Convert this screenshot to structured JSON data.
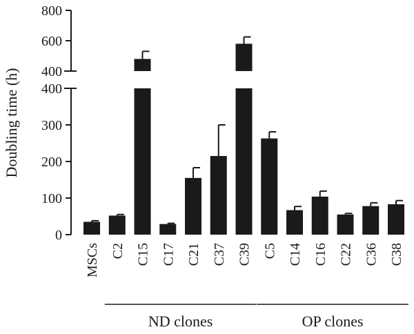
{
  "chart_data": {
    "type": "bar",
    "ylabel": "Doubling time (h)",
    "axis_break": {
      "lower_range": [
        0,
        400
      ],
      "upper_range": [
        400,
        800
      ]
    },
    "lower_ticks": [
      0,
      100,
      200,
      300,
      400
    ],
    "upper_ticks": [
      400,
      600,
      800
    ],
    "categories": [
      "MSCs",
      "C2",
      "C15",
      "C17",
      "C21",
      "C37",
      "C39",
      "C5",
      "C14",
      "C16",
      "C22",
      "C36",
      "C38"
    ],
    "values": [
      35,
      52,
      480,
      29,
      155,
      215,
      580,
      263,
      67,
      104,
      55,
      78,
      83
    ],
    "errors": [
      3,
      3,
      50,
      2,
      28,
      85,
      45,
      18,
      10,
      15,
      3,
      9,
      10
    ],
    "groups": [
      {
        "label": "ND clones",
        "categories": [
          "C2",
          "C15",
          "C17",
          "C21",
          "C37",
          "C39"
        ]
      },
      {
        "label": "OP clones",
        "categories": [
          "C5",
          "C14",
          "C16",
          "C22",
          "C36",
          "C38"
        ]
      }
    ],
    "bar_color": "#1a1a1a"
  }
}
